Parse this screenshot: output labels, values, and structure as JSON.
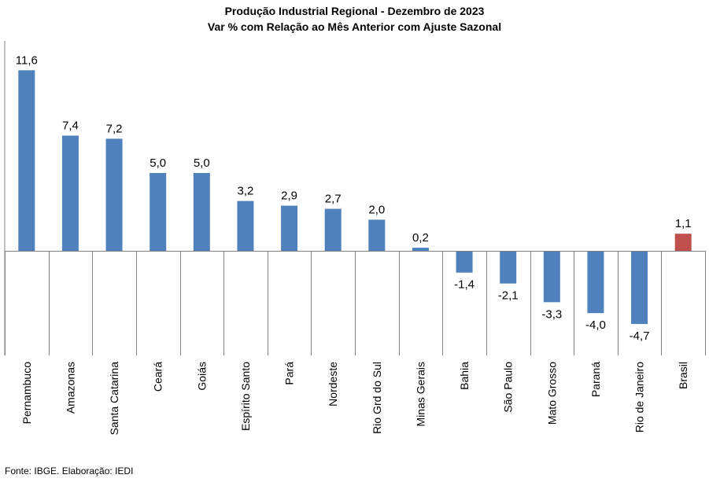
{
  "chart_data": {
    "type": "bar",
    "title": "Produção Industrial Regional  - Dezembro de 2023",
    "subtitle": "Var % com Relação ao Mês Anterior com Ajuste Sazonal",
    "categories": [
      "Pernambuco",
      "Amazonas",
      "Santa Catarina",
      "Ceará",
      "Goiás",
      "Espírito Santo",
      "Pará",
      "Nordeste",
      "Rio Grd do Sul",
      "Minas Gerais",
      "Bahia",
      "São Paulo",
      "Mato Grosso",
      "Paraná",
      "Rio de Janeiro",
      "Brasil"
    ],
    "values": [
      11.6,
      7.4,
      7.2,
      5.0,
      5.0,
      3.2,
      2.9,
      2.7,
      2.0,
      0.2,
      -1.4,
      -2.1,
      -3.3,
      -4.0,
      -4.7,
      1.1
    ],
    "data_labels": [
      "11,6",
      "7,4",
      "7,2",
      "5,0",
      "5,0",
      "3,2",
      "2,9",
      "2,7",
      "2,0",
      "0,2",
      "-1,4",
      "-2,1",
      "-3,3",
      "-4,0",
      "-4,7",
      "1,1"
    ],
    "colors": {
      "default": "#4F81BD",
      "highlight": "#C0504D",
      "highlight_category": "Brasil"
    },
    "ylim": [
      -6.7,
      13.5
    ],
    "grid": false,
    "legend": "none"
  },
  "source_text": "Fonte: IBGE. Elaboração: IEDI"
}
